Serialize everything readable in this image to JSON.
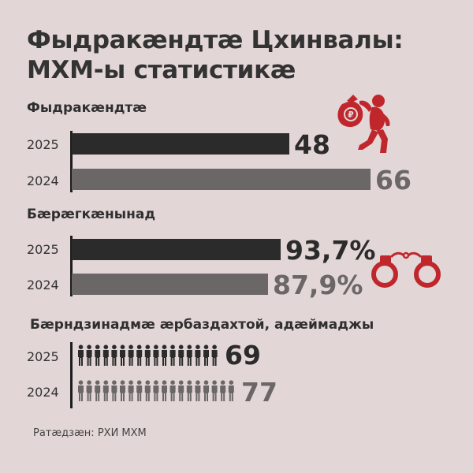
{
  "title_line1": "Фыдракæндтæ Цхинвалы:",
  "title_line2": "МХМ-ы статистикæ",
  "source": "Ратæдзæн: РХИ МХМ",
  "colors": {
    "dark": "#2b2b2b",
    "grey": "#6b6767",
    "accent": "#c0272d",
    "background": "#e3d6d6"
  },
  "icons": [
    "thief-icon",
    "handcuffs-icon",
    "person-icon"
  ],
  "chart_data": [
    {
      "type": "bar",
      "orientation": "horizontal",
      "title": "Фыдракæндтæ",
      "categories": [
        "2025",
        "2024"
      ],
      "values": [
        48,
        66
      ],
      "labels": [
        "48",
        "66"
      ]
    },
    {
      "type": "bar",
      "orientation": "horizontal",
      "title": "Бæрæгкæнынад",
      "categories": [
        "2025",
        "2024"
      ],
      "values": [
        93.7,
        87.9
      ],
      "labels": [
        "93,7%",
        "87,9%"
      ]
    },
    {
      "type": "pictogram",
      "title": "Бæрндзинадмæ æрбаздахтой, адæймаджы",
      "categories": [
        "2025",
        "2024"
      ],
      "values": [
        69,
        77
      ],
      "labels": [
        "69",
        "77"
      ]
    }
  ]
}
